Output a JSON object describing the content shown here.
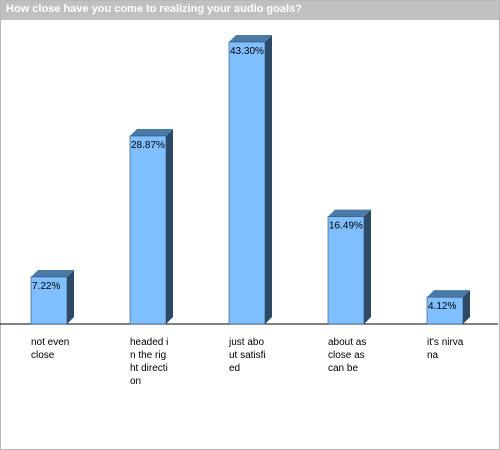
{
  "title": "How close have you come to realizing your audio goals?",
  "chart_data": {
    "type": "bar",
    "title": "How close have you come to realizing your audio goals?",
    "categories": [
      "not even close",
      "headed in the right direction",
      "just about satisfied",
      "about as close as can be",
      "it's nirvana"
    ],
    "values": [
      7.22,
      28.87,
      43.3,
      16.49,
      4.12
    ],
    "value_labels": [
      "7.22%",
      "28.87%",
      "43.30%",
      "16.49%",
      "4.12%"
    ],
    "unit": "%",
    "xlabel": "",
    "ylabel": "",
    "ylim": [
      0,
      43.3
    ],
    "grid": false,
    "legend": "none",
    "bar_style": "3d"
  },
  "colors": {
    "bar_front": "#7fbfff",
    "bar_top": "#4a7aa8",
    "bar_side": "#2c4a66",
    "title_bar": "#c0c0c0",
    "title_text": "#ffffff"
  }
}
